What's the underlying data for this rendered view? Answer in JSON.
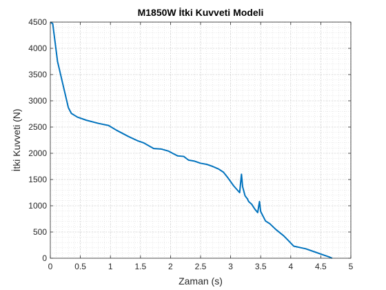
{
  "chart_data": {
    "type": "line",
    "title": "M1850W İtki Kuvveti Modeli",
    "xlabel": "Zaman (s)",
    "ylabel": "İtki Kuvveti (N)",
    "xlim": [
      0,
      5
    ],
    "ylim": [
      0,
      4500
    ],
    "xticks": [
      0,
      0.5,
      1,
      1.5,
      2,
      2.5,
      3,
      3.5,
      4,
      4.5,
      5
    ],
    "xtick_labels": [
      "0",
      "0.5",
      "1",
      "1.5",
      "2",
      "2.5",
      "3",
      "3.5",
      "4",
      "4.5",
      "5"
    ],
    "yticks": [
      0,
      500,
      1000,
      1500,
      2000,
      2500,
      3000,
      3500,
      4000,
      4500
    ],
    "ytick_labels": [
      "0",
      "500",
      "1000",
      "1500",
      "2000",
      "2500",
      "3000",
      "3500",
      "4000",
      "4500"
    ],
    "grid": true,
    "minor_grid": true,
    "line_color": "#0072BD",
    "series": [
      {
        "x": [
          0,
          0.04,
          0.12,
          0.3,
          0.35,
          0.45,
          0.6,
          0.8,
          0.97,
          1.1,
          1.3,
          1.45,
          1.55,
          1.72,
          1.85,
          1.97,
          2.05,
          2.12,
          2.22,
          2.3,
          2.4,
          2.5,
          2.6,
          2.7,
          2.8,
          2.88,
          2.95,
          3.05,
          3.15,
          3.18,
          3.2,
          3.24,
          3.28,
          3.3,
          3.35,
          3.4,
          3.45,
          3.48,
          3.5,
          3.58,
          3.65,
          3.75,
          3.88,
          3.95,
          4.05,
          4.25,
          4.4,
          4.55,
          4.65,
          4.69
        ],
        "y": [
          4500,
          4470,
          3750,
          2870,
          2760,
          2690,
          2630,
          2570,
          2530,
          2440,
          2320,
          2240,
          2200,
          2090,
          2080,
          2040,
          1990,
          1950,
          1940,
          1870,
          1850,
          1810,
          1790,
          1750,
          1700,
          1640,
          1540,
          1380,
          1250,
          1600,
          1360,
          1190,
          1130,
          1080,
          1030,
          940,
          870,
          1080,
          890,
          710,
          660,
          550,
          430,
          350,
          230,
          180,
          120,
          60,
          20,
          0
        ]
      }
    ]
  }
}
